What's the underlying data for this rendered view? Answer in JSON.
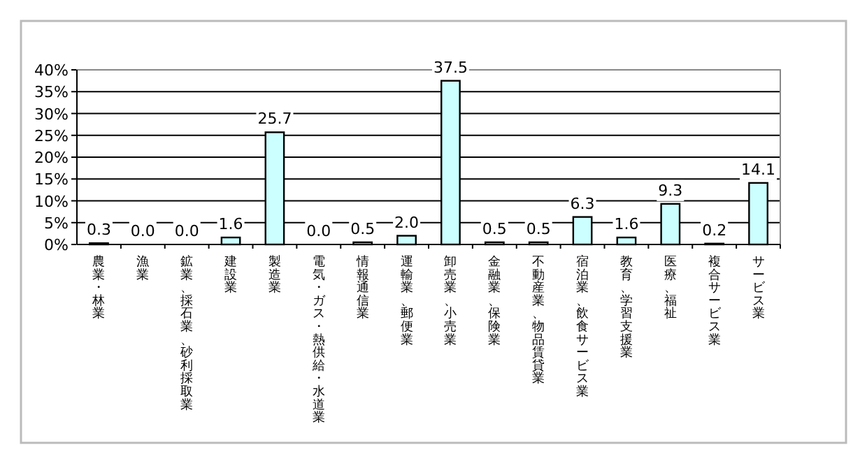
{
  "chart_data": {
    "type": "bar",
    "categories": [
      "農業・林業",
      "漁業",
      "鉱業、採石業、砂利採取業",
      "建設業",
      "製造業",
      "電気・ガス・熱供給・水道業",
      "情報通信業",
      "運輸業、郵便業",
      "卸売業、小売業",
      "金融業、保険業",
      "不動産業、物品賃貸業",
      "宿泊業、飲食サービス業",
      "教育、学習支援業",
      "医療、福祉",
      "複合サービス業",
      "サービス業"
    ],
    "values": [
      0.3,
      0.0,
      0.0,
      1.6,
      25.7,
      0.0,
      0.5,
      2.0,
      37.5,
      0.5,
      0.5,
      6.3,
      1.6,
      9.3,
      0.2,
      14.1
    ],
    "value_labels": [
      "0.3",
      "0.0",
      "0.0",
      "1.6",
      "25.7",
      "0.0",
      "0.5",
      "2.0",
      "37.5",
      "0.5",
      "0.5",
      "6.3",
      "1.6",
      "9.3",
      "0.2",
      "14.1"
    ],
    "color": "#ccffff",
    "ylim": [
      0,
      40
    ],
    "yticks": [
      {
        "value": 0,
        "label": "0%"
      },
      {
        "value": 5,
        "label": "5%"
      },
      {
        "value": 10,
        "label": "10%"
      },
      {
        "value": 15,
        "label": "15%"
      },
      {
        "value": 20,
        "label": "20%"
      },
      {
        "value": 25,
        "label": "25%"
      },
      {
        "value": 30,
        "label": "30%"
      },
      {
        "value": 35,
        "label": "35%"
      },
      {
        "value": 40,
        "label": "40%"
      }
    ],
    "grid": "y"
  }
}
